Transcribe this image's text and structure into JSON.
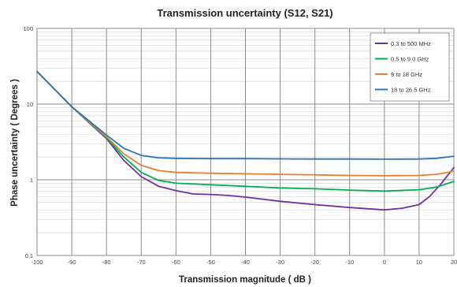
{
  "chart_data": {
    "type": "line",
    "title": "Transmission uncertainty (S12, S21)",
    "xlabel": "Transmission magnitude ( dB )",
    "ylabel": "Phase uncertainty ( Degrees )",
    "x_scale": "linear",
    "y_scale": "log",
    "xlim": [
      -100,
      20
    ],
    "ylim": [
      0.1,
      100
    ],
    "x_ticks": [
      "-100",
      "-90",
      "-80",
      "-70",
      "-60",
      "-50",
      "-40",
      "-30",
      "-20",
      "-10",
      "0",
      "10",
      "20"
    ],
    "y_ticks": [
      "0.1",
      "1",
      "10",
      "100"
    ],
    "grid": true,
    "legend_position": "top-right",
    "series": [
      {
        "name": "0.3 to 500 MHz",
        "color": "#7030a0",
        "points": [
          [
            -100,
            27
          ],
          [
            -90,
            9.2
          ],
          [
            -80,
            3.5
          ],
          [
            -75,
            1.8
          ],
          [
            -70,
            1.1
          ],
          [
            -65,
            0.82
          ],
          [
            -60,
            0.72
          ],
          [
            -55,
            0.65
          ],
          [
            -50,
            0.64
          ],
          [
            -45,
            0.62
          ],
          [
            -40,
            0.59
          ],
          [
            -30,
            0.52
          ],
          [
            -20,
            0.47
          ],
          [
            -10,
            0.43
          ],
          [
            0,
            0.4
          ],
          [
            5,
            0.42
          ],
          [
            10,
            0.47
          ],
          [
            13,
            0.6
          ],
          [
            16,
            0.85
          ],
          [
            20,
            1.45
          ]
        ]
      },
      {
        "name": "0.5 to 9.0 GHz",
        "color": "#00b050",
        "points": [
          [
            -100,
            27
          ],
          [
            -90,
            9.2
          ],
          [
            -80,
            3.6
          ],
          [
            -75,
            2.0
          ],
          [
            -70,
            1.25
          ],
          [
            -65,
            0.98
          ],
          [
            -60,
            0.9
          ],
          [
            -50,
            0.86
          ],
          [
            -40,
            0.82
          ],
          [
            -30,
            0.78
          ],
          [
            -20,
            0.76
          ],
          [
            -10,
            0.73
          ],
          [
            0,
            0.71
          ],
          [
            10,
            0.74
          ],
          [
            15,
            0.8
          ],
          [
            20,
            0.95
          ]
        ]
      },
      {
        "name": "9 to 18 GHz",
        "color": "#ed7d31",
        "points": [
          [
            -100,
            27
          ],
          [
            -90,
            9.2
          ],
          [
            -80,
            3.7
          ],
          [
            -75,
            2.2
          ],
          [
            -70,
            1.55
          ],
          [
            -65,
            1.32
          ],
          [
            -60,
            1.25
          ],
          [
            -50,
            1.22
          ],
          [
            -40,
            1.2
          ],
          [
            -30,
            1.18
          ],
          [
            -20,
            1.16
          ],
          [
            -10,
            1.14
          ],
          [
            0,
            1.13
          ],
          [
            10,
            1.14
          ],
          [
            15,
            1.18
          ],
          [
            20,
            1.3
          ]
        ]
      },
      {
        "name": "18 to 26.5 GHz",
        "color": "#2e75b6",
        "points": [
          [
            -100,
            27
          ],
          [
            -90,
            9.2
          ],
          [
            -80,
            3.9
          ],
          [
            -75,
            2.6
          ],
          [
            -70,
            2.1
          ],
          [
            -65,
            1.95
          ],
          [
            -60,
            1.92
          ],
          [
            -50,
            1.9
          ],
          [
            -40,
            1.9
          ],
          [
            -30,
            1.89
          ],
          [
            -20,
            1.88
          ],
          [
            -10,
            1.88
          ],
          [
            0,
            1.87
          ],
          [
            10,
            1.88
          ],
          [
            15,
            1.92
          ],
          [
            20,
            2.05
          ]
        ]
      }
    ]
  }
}
